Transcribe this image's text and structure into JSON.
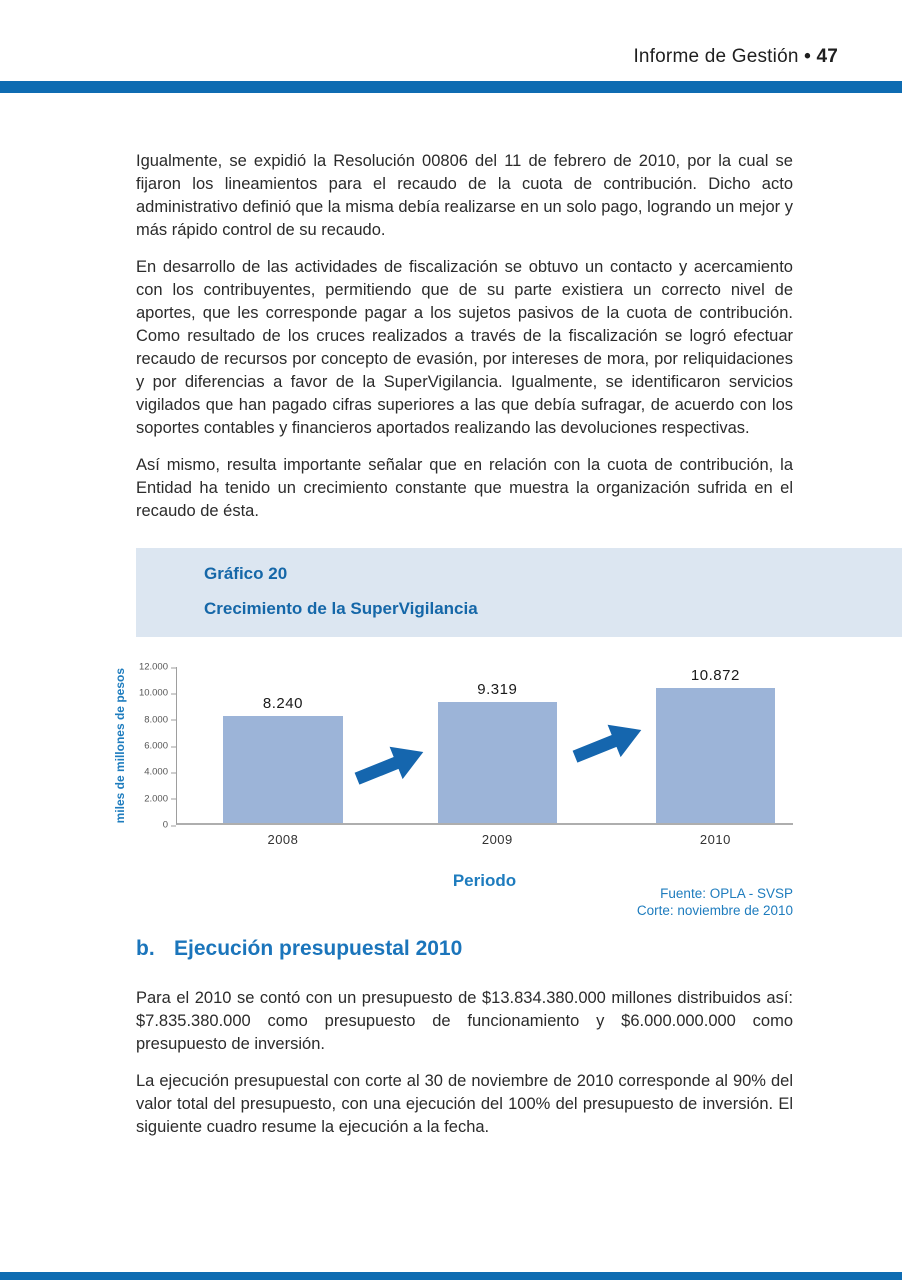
{
  "header": {
    "title": "Informe de Gestión",
    "bullet": "•",
    "page_number": "47"
  },
  "paragraphs": [
    "Igualmente, se expidió la Resolución 00806 del 11 de febrero de 2010, por la cual se fijaron los lineamientos para el recaudo de la cuota de contribución. Dicho acto administrativo definió que la misma debía realizarse en un solo pago, logrando un mejor y más rápido control de su recaudo.",
    "En desarrollo de las actividades de fiscalización se obtuvo un contacto y acercamiento con los contribuyentes, permitiendo que de su parte existiera un correcto nivel de aportes, que les corresponde pagar a los sujetos pasivos de la cuota de contribución. Como resultado de los cruces realizados a través de la fiscalización se logró efectuar recaudo de recursos por concepto de evasión, por intereses de mora, por reliquidaciones y por diferencias a favor de la SuperVigilancia. Igualmente, se identificaron servicios vigilados que han pagado cifras superiores a las que debía sufragar, de acuerdo con los soportes contables y financieros aportados realizando las devoluciones respectivas.",
    "Así mismo, resulta importante señalar que en relación con la cuota de contribución, la Entidad ha tenido un crecimiento constante que muestra la organización sufrida en el recaudo de ésta.",
    "Para el 2010 se contó con un presupuesto de $13.834.380.000 millones distribuidos así: $7.835.380.000 como presupuesto de funcionamiento y $6.000.000.000 como presupuesto de inversión.",
    "La ejecución presupuestal con corte al 30 de noviembre de 2010 corresponde al 90% del valor total del presupuesto, con una ejecución del 100% del presupuesto de inversión. El siguiente cuadro resume la ejecución a la fecha."
  ],
  "chart_box": {
    "label": "Gráfico 20",
    "title": "Crecimiento de la SuperVigilancia"
  },
  "chart_data": {
    "type": "bar",
    "title": "Crecimiento de la SuperVigilancia",
    "categories": [
      "2008",
      "2009",
      "2010"
    ],
    "values": [
      8240,
      9319,
      10872
    ],
    "value_labels": [
      "8.240",
      "9.319",
      "10.872"
    ],
    "xlabel": "Periodo",
    "ylabel": "miles de millones de pesos",
    "ylim": [
      0,
      12000
    ],
    "yticks": [
      "0",
      "2.000",
      "4.000",
      "6.000",
      "8.000",
      "10.000",
      "12.000"
    ],
    "grid": false,
    "legend": "none",
    "bar_color": "#9cb4d8",
    "arrow_color": "#1566ae",
    "annotations": [
      "growth arrow 2008→2009",
      "growth arrow 2009→2010"
    ]
  },
  "source": {
    "line1": "Fuente: OPLA - SVSP",
    "line2": "Corte: noviembre de 2010"
  },
  "section": {
    "marker": "b.",
    "title": "Ejecución presupuestal 2010"
  },
  "colors": {
    "accent_blue": "#0e6cb2",
    "heading_blue": "#1b75bb",
    "box_background": "#dce6f1"
  }
}
